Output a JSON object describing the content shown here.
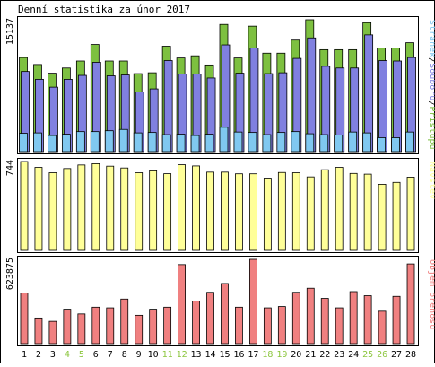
{
  "title": "Denní statistika za únor 2017",
  "colors": {
    "hits": "#7dc040",
    "files": "#8080e0",
    "pages": "#80c8f0",
    "visits": "#ffff99",
    "volume": "#f08080",
    "weekend": "#8cc63e",
    "weekday": "#000000",
    "frame": "#000000"
  },
  "chart_data": [
    {
      "type": "bar",
      "title": "Denní statistika za únor 2017",
      "ylabel_max": "15137",
      "ylim": [
        0,
        15137
      ],
      "side_label_parts": [
        "Stránek",
        "/",
        "Souborů",
        "/",
        "Přístupů"
      ],
      "categories": [
        "1",
        "2",
        "3",
        "4",
        "5",
        "6",
        "7",
        "8",
        "9",
        "10",
        "11",
        "12",
        "13",
        "14",
        "15",
        "16",
        "17",
        "18",
        "19",
        "20",
        "21",
        "22",
        "23",
        "24",
        "25",
        "26",
        "27",
        "28"
      ],
      "series": [
        {
          "name": "Přístupů",
          "color_key": "hits",
          "values": [
            10800,
            10000,
            9000,
            9600,
            10400,
            12300,
            10400,
            10400,
            8950,
            9050,
            12100,
            10750,
            11000,
            9950,
            14600,
            10750,
            14400,
            11300,
            11300,
            12800,
            15137,
            11700,
            11700,
            11700,
            14800,
            11900,
            11900,
            12500
          ]
        },
        {
          "name": "Souborů",
          "color_key": "files",
          "values": [
            9200,
            8300,
            7400,
            8300,
            8750,
            10250,
            8700,
            8800,
            6850,
            7200,
            10450,
            8900,
            8900,
            8450,
            12250,
            9000,
            11900,
            8950,
            9050,
            10700,
            13050,
            9800,
            9600,
            9600,
            13400,
            10450,
            10400,
            10800
          ]
        },
        {
          "name": "Stránek",
          "color_key": "pages",
          "values": [
            2100,
            2150,
            1850,
            2000,
            2300,
            2300,
            2400,
            2550,
            2150,
            2200,
            1950,
            2000,
            1850,
            2000,
            2800,
            2250,
            2200,
            1950,
            2200,
            2300,
            2050,
            1950,
            1900,
            2250,
            2150,
            1600,
            1600,
            2250
          ]
        }
      ]
    },
    {
      "type": "bar",
      "ylabel_max": "744",
      "ylim": [
        0,
        744
      ],
      "side_label": "Návštěv",
      "series": [
        {
          "name": "Návštěv",
          "color_key": "visits",
          "values": [
            744,
            695,
            650,
            685,
            715,
            726,
            705,
            690,
            650,
            666,
            642,
            717,
            707,
            655,
            655,
            641,
            641,
            605,
            652,
            650,
            615,
            675,
            695,
            644,
            638,
            553,
            569,
            613
          ]
        }
      ]
    },
    {
      "type": "bar",
      "ylabel_max": "623875",
      "ylim": [
        0,
        623875
      ],
      "side_label": "Objem přenosu",
      "series": [
        {
          "name": "Objem přenosu",
          "color_key": "volume",
          "values": [
            375000,
            190000,
            165000,
            255000,
            220000,
            270000,
            265000,
            330000,
            210000,
            255000,
            270000,
            585000,
            315000,
            380000,
            445000,
            270000,
            623875,
            265000,
            275000,
            380000,
            410000,
            335000,
            265000,
            385000,
            355000,
            240000,
            350000,
            590000
          ]
        }
      ]
    }
  ],
  "weekend_days": [
    "4",
    "5",
    "11",
    "12",
    "18",
    "19",
    "25",
    "26"
  ]
}
